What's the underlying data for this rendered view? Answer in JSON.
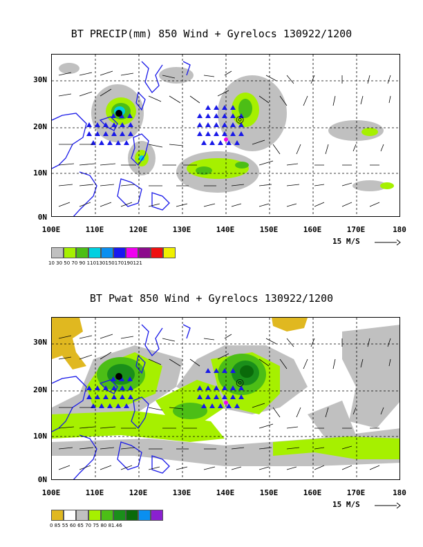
{
  "panels": [
    {
      "title": "BT PRECIP(mm) 850 Wind + Gyrelocs 130922/1200",
      "lat_labels": [
        "30N",
        "20N",
        "10N",
        "0N"
      ],
      "lon_labels": [
        "100E",
        "110E",
        "120E",
        "130E",
        "140E",
        "150E",
        "160E",
        "170E",
        "180"
      ],
      "scale_label": "15 M/S",
      "colorbar": {
        "colors": [
          "#c0c0c0",
          "#a6f000",
          "#4cbe16",
          "#00d0e0",
          "#0a8ff0",
          "#1818f0",
          "#f000f0",
          "#8c0a8c",
          "#f01010",
          "#f0f000"
        ],
        "labels": "10 30 50 70 90 110130150170190121"
      }
    },
    {
      "title": "BT Pwat 850 Wind + Gyrelocs 130922/1200",
      "lat_labels": [
        "30N",
        "20N",
        "10N",
        "0N"
      ],
      "lon_labels": [
        "100E",
        "110E",
        "120E",
        "130E",
        "140E",
        "150E",
        "160E",
        "170E",
        "180"
      ],
      "scale_label": "15 M/S",
      "colorbar": {
        "colors": [
          "#e0b820",
          "#ffffff",
          "#c0c0c0",
          "#a6f000",
          "#4cbe16",
          "#1a8f1a",
          "#0a6a0a",
          "#0a8ff0",
          "#8a20d0"
        ],
        "labels": "0   85   55   60   65   70   75   80  81.46"
      }
    }
  ],
  "colors": {
    "coast": "#1818e8",
    "gyre_marker": "#1818e8",
    "center_marker": "#f000f0"
  }
}
